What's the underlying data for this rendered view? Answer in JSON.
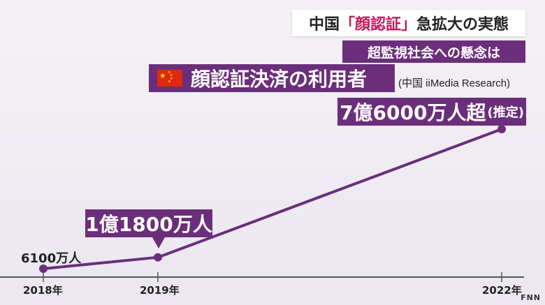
{
  "title": {
    "prefix": "中国",
    "highlight": "「顔認証」",
    "suffix": "急拡大の実態"
  },
  "subtitle": "超監視社会への懸念は",
  "heading": "顔認証決済の利用者",
  "source": "(中国 iiMedia Research)",
  "logo": "FNN",
  "colors": {
    "accent": "#6b2e7b",
    "highlight": "#c2185b",
    "flag": "#de2910"
  },
  "chart_data": {
    "type": "line",
    "title": "顔認証決済の利用者",
    "x": [
      "2018年",
      "2019年",
      "2022年"
    ],
    "x_numeric": [
      2018,
      2019,
      2022
    ],
    "series": [
      {
        "values": [
          6100,
          11800,
          76000
        ],
        "labels": [
          "6100万人",
          "1億1800万人",
          "7億6000万人超"
        ],
        "notes": [
          "",
          "",
          "(推定)"
        ]
      }
    ],
    "y_unit": "万人",
    "xlabel": "",
    "ylabel": "",
    "ylim": [
      6100,
      76000
    ],
    "grid": false,
    "legend": "none"
  }
}
